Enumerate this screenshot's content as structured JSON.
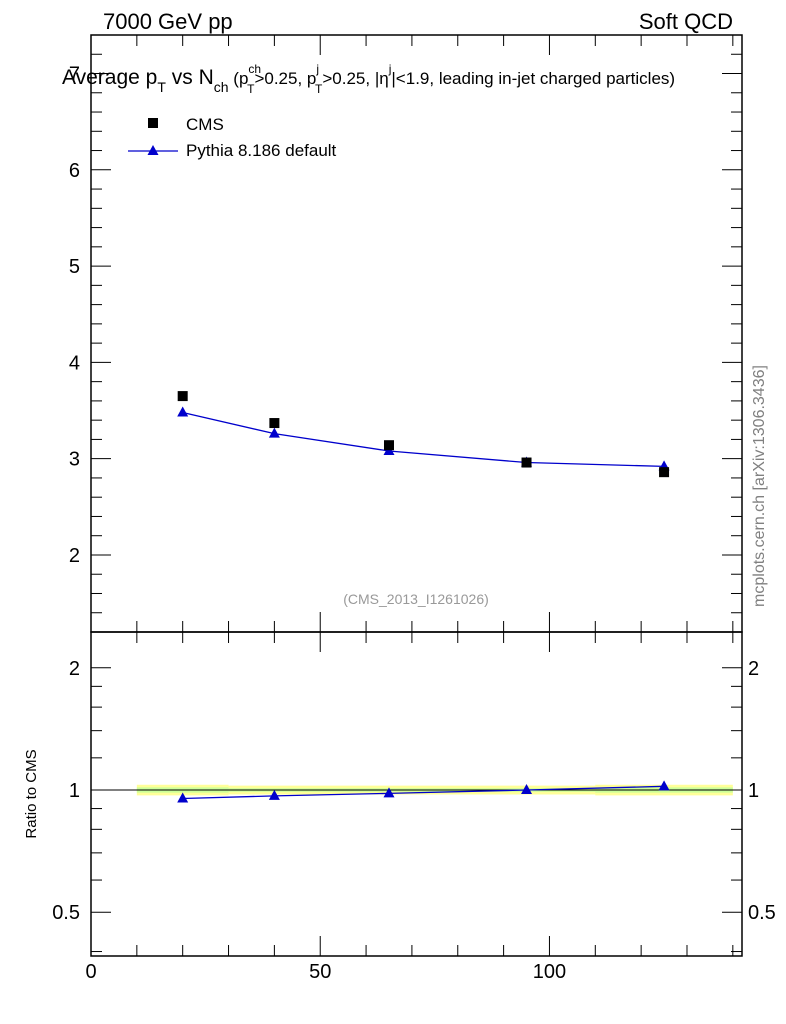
{
  "header": {
    "left": "7000 GeV pp",
    "right": "Soft QCD"
  },
  "title": {
    "main": "Average p",
    "main_sub": "T",
    "vs": " vs N",
    "vs_sub": "ch",
    "open": " (p",
    "c1_sup": "ch",
    "c1_sub": "T",
    "c1_rest": ">0.25, p",
    "c2_sup": "j",
    "c2_sub": "T",
    "c2_rest": ">0.25, |η",
    "c3_sup": "j",
    "c3_rest": "|<1.9, leading in-jet charged particles)"
  },
  "watermark": "mcplots.cern.ch [arXiv:1306.3436]",
  "analysis_id": "(CMS_2013_I1261026)",
  "colors": {
    "data": "#000000",
    "mc": "#0000cc",
    "band_outer": "#ffff99",
    "band_inner": "#ccff99"
  },
  "chart_data": [
    {
      "type": "scatter",
      "panel": "main",
      "xlim": [
        0,
        142
      ],
      "ylim": [
        1.2,
        7.4
      ],
      "yticks": [
        2,
        3,
        4,
        5,
        6,
        7
      ],
      "ytick_labels": [
        "2",
        "3",
        "4",
        "5",
        "6",
        "7"
      ],
      "legend_position": "top-left",
      "series": [
        {
          "name": "CMS",
          "marker": "square",
          "x": [
            20,
            40,
            65,
            95,
            125
          ],
          "y": [
            3.65,
            3.37,
            3.14,
            2.96,
            2.86
          ]
        },
        {
          "name": "Pythia 8.186 default",
          "marker": "triangle",
          "line": true,
          "x": [
            20,
            40,
            65,
            95,
            125
          ],
          "y": [
            3.48,
            3.26,
            3.08,
            2.96,
            2.92
          ]
        }
      ]
    },
    {
      "type": "line",
      "panel": "ratio",
      "ylabel": "Ratio to CMS",
      "log_y": true,
      "xlim": [
        0,
        142
      ],
      "ylim": [
        0.39,
        2.45
      ],
      "yticks": [
        0.5,
        1,
        2
      ],
      "ytick_labels": [
        "0.5",
        "1",
        "2"
      ],
      "xticks": [
        0,
        50,
        100
      ],
      "xtick_labels": [
        "0",
        "50",
        "100"
      ],
      "reference": 1,
      "band": {
        "x": [
          10,
          30,
          30,
          50,
          50,
          80,
          80,
          110,
          110,
          140
        ],
        "outer_low": [
          0.97,
          0.97,
          0.975,
          0.975,
          0.975,
          0.975,
          0.975,
          0.975,
          0.97,
          0.97
        ],
        "outer_high": [
          1.03,
          1.03,
          1.025,
          1.025,
          1.025,
          1.025,
          1.025,
          1.025,
          1.03,
          1.03
        ],
        "inner_low": [
          0.985,
          0.985,
          0.99,
          0.99,
          0.99,
          0.99,
          0.99,
          0.99,
          0.985,
          0.985
        ],
        "inner_high": [
          1.015,
          1.015,
          1.01,
          1.01,
          1.01,
          1.01,
          1.01,
          1.01,
          1.015,
          1.015
        ]
      },
      "series": [
        {
          "name": "Pythia 8.186 default",
          "marker": "triangle",
          "x": [
            20,
            40,
            65,
            95,
            125
          ],
          "y": [
            0.953,
            0.967,
            0.981,
            1.0,
            1.021
          ]
        }
      ]
    }
  ]
}
